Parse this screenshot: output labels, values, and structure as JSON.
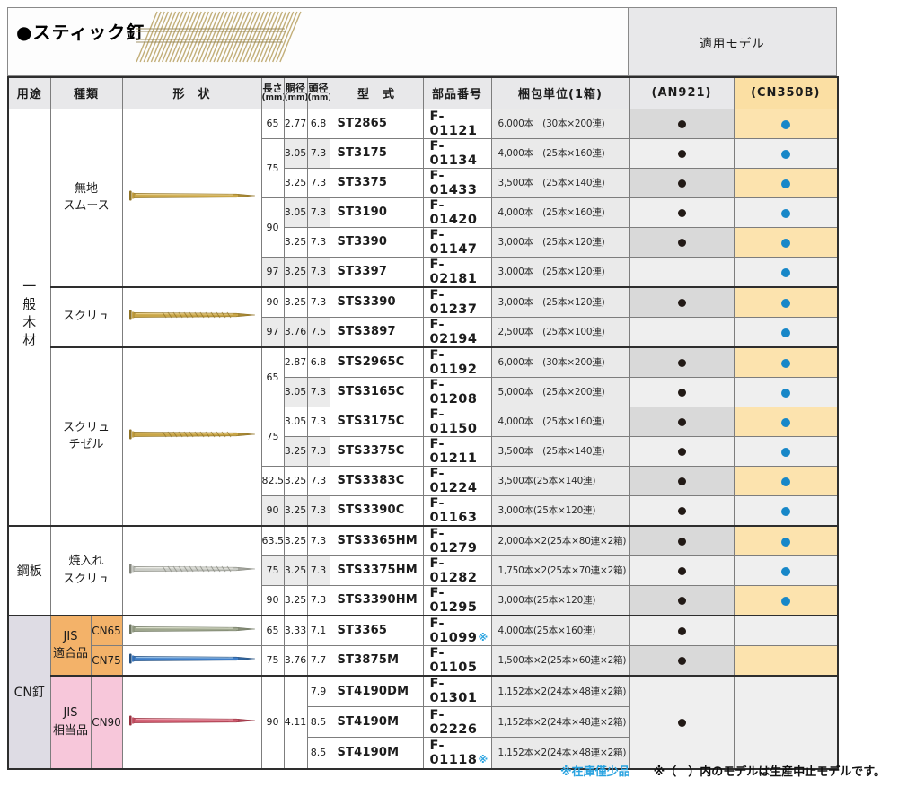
{
  "page": {
    "title": "●スティック釘",
    "applicable_models_label": "適用モデル",
    "footnote_stock": "※在庫僅少品",
    "footnote_discontinued": "※（　）内のモデルは生産中止モデルです。"
  },
  "colors": {
    "accent_blue_dot": "#1787C8",
    "black_dot": "#221A16",
    "cn350b_cream": "#FCE3AE",
    "header_grey": "#E8E8EA",
    "an921_grey": "#D9D9D9",
    "jis_orange": "#F3B269",
    "jis_pink": "#F7C7DA",
    "cn_lavender": "#DEDCE4",
    "note_blue": "#29A3E0"
  },
  "table": {
    "headers": {
      "usage": "用途",
      "type": "種類",
      "shape": "形　状",
      "length": "長さ",
      "shank_dia": "胴径",
      "head_dia": "頭径",
      "mm": "(mm)",
      "model": "型　式",
      "part_no": "部品番号",
      "packing": "梱包単位(1箱)",
      "an921": "(AN921)",
      "cn350b": "(CN350B)"
    },
    "usage_groups": [
      {
        "label": "一般木材",
        "rows": 14,
        "vertical": true,
        "bg": "white"
      },
      {
        "label": "鋼板",
        "rows": 3,
        "vertical": false,
        "bg": "white"
      },
      {
        "label": "CN釘",
        "rows": 5,
        "vertical": false,
        "bg": "lavender"
      }
    ],
    "type_groups": [
      {
        "label": "無地\nスムース",
        "rows": 6,
        "full": true,
        "shape": "gold_smooth"
      },
      {
        "label": "スクリュ",
        "rows": 2,
        "full": true,
        "shape": "gold_screw"
      },
      {
        "label": "スクリュ\nチゼル",
        "rows": 6,
        "full": true,
        "shape": "gold_screw"
      },
      {
        "label": "焼入れ\nスクリュ",
        "rows": 3,
        "full": true,
        "shape": "silver_screw"
      },
      {
        "label": "JIS\n適合品",
        "rows": 2,
        "full": false,
        "bg": "orange",
        "subs": [
          {
            "label": "CN65",
            "rows": 1,
            "shape": "cn65",
            "bg": "orange"
          },
          {
            "label": "CN75",
            "rows": 1,
            "shape": "cn75",
            "bg": "orange"
          }
        ]
      },
      {
        "label": "JIS\n相当品",
        "rows": 3,
        "full": false,
        "bg": "pink",
        "subs": [
          {
            "label": "CN90",
            "rows": 3,
            "shape": "cn90",
            "bg": "pink"
          }
        ]
      }
    ],
    "rows": [
      {
        "len": "65",
        "lenSpan": 1,
        "dia": "2.77",
        "diaSpan": 1,
        "head": "6.8",
        "model": "ST2865",
        "part": "F-01121",
        "note": false,
        "pack": "6,000本　(30本×200連)",
        "an": true,
        "cn": true,
        "shade": false
      },
      {
        "len": "75",
        "lenSpan": 2,
        "dia": "3.05",
        "diaSpan": 1,
        "head": "7.3",
        "model": "ST3175",
        "part": "F-01134",
        "note": false,
        "pack": "4,000本　(25本×160連)",
        "an": true,
        "cn": true,
        "shade": true
      },
      {
        "len": null,
        "dia": "3.25",
        "diaSpan": 1,
        "head": "7.3",
        "model": "ST3375",
        "part": "F-01433",
        "note": false,
        "pack": "3,500本　(25本×140連)",
        "an": true,
        "cn": true,
        "shade": false
      },
      {
        "len": "90",
        "lenSpan": 2,
        "dia": "3.05",
        "diaSpan": 1,
        "head": "7.3",
        "model": "ST3190",
        "part": "F-01420",
        "note": false,
        "pack": "4,000本　(25本×160連)",
        "an": true,
        "cn": true,
        "shade": true
      },
      {
        "len": null,
        "dia": "3.25",
        "diaSpan": 1,
        "head": "7.3",
        "model": "ST3390",
        "part": "F-01147",
        "note": false,
        "pack": "3,000本　(25本×120連)",
        "an": true,
        "cn": true,
        "shade": false
      },
      {
        "len": "97",
        "lenSpan": 1,
        "dia": "3.25",
        "diaSpan": 1,
        "head": "7.3",
        "model": "ST3397",
        "part": "F-02181",
        "note": false,
        "pack": "3,000本　(25本×120連)",
        "an": false,
        "cn": true,
        "shade": true
      },
      {
        "len": "90",
        "lenSpan": 1,
        "dia": "3.25",
        "diaSpan": 1,
        "head": "7.3",
        "model": "STS3390",
        "part": "F-01237",
        "note": false,
        "pack": "3,000本　(25本×120連)",
        "an": true,
        "cn": true,
        "shade": false,
        "groupTop": true
      },
      {
        "len": "97",
        "lenSpan": 1,
        "dia": "3.76",
        "diaSpan": 1,
        "head": "7.5",
        "model": "STS3897",
        "part": "F-02194",
        "note": false,
        "pack": "2,500本　(25本×100連)",
        "an": false,
        "cn": true,
        "shade": true
      },
      {
        "len": "65",
        "lenSpan": 2,
        "dia": "2.87",
        "diaSpan": 1,
        "head": "6.8",
        "model": "STS2965C",
        "part": "F-01192",
        "note": false,
        "pack": "6,000本　(30本×200連)",
        "an": true,
        "cn": true,
        "shade": false,
        "groupTop": true
      },
      {
        "len": null,
        "dia": "3.05",
        "diaSpan": 1,
        "head": "7.3",
        "model": "STS3165C",
        "part": "F-01208",
        "note": false,
        "pack": "5,000本　(25本×200連)",
        "an": true,
        "cn": true,
        "shade": true
      },
      {
        "len": "75",
        "lenSpan": 2,
        "dia": "3.05",
        "diaSpan": 1,
        "head": "7.3",
        "model": "STS3175C",
        "part": "F-01150",
        "note": false,
        "pack": "4,000本　(25本×160連)",
        "an": true,
        "cn": true,
        "shade": false
      },
      {
        "len": null,
        "dia": "3.25",
        "diaSpan": 1,
        "head": "7.3",
        "model": "STS3375C",
        "part": "F-01211",
        "note": false,
        "pack": "3,500本　(25本×140連)",
        "an": true,
        "cn": true,
        "shade": true
      },
      {
        "len": "82.5",
        "lenSpan": 1,
        "dia": "3.25",
        "diaSpan": 1,
        "head": "7.3",
        "model": "STS3383C",
        "part": "F-01224",
        "note": false,
        "pack": "3,500本(25本×140連)",
        "an": true,
        "cn": true,
        "shade": false
      },
      {
        "len": "90",
        "lenSpan": 1,
        "dia": "3.25",
        "diaSpan": 1,
        "head": "7.3",
        "model": "STS3390C",
        "part": "F-01163",
        "note": false,
        "pack": "3,000本(25本×120連)",
        "an": true,
        "cn": true,
        "shade": true
      },
      {
        "len": "63.5",
        "lenSpan": 1,
        "dia": "3.25",
        "diaSpan": 1,
        "head": "7.3",
        "model": "STS3365HM",
        "part": "F-01279",
        "note": false,
        "pack": "2,000本×2(25本×80連×2箱)",
        "an": true,
        "cn": true,
        "shade": false,
        "groupTop": true
      },
      {
        "len": "75",
        "lenSpan": 1,
        "dia": "3.25",
        "diaSpan": 1,
        "head": "7.3",
        "model": "STS3375HM",
        "part": "F-01282",
        "note": false,
        "pack": "1,750本×2(25本×70連×2箱)",
        "an": true,
        "cn": true,
        "shade": true
      },
      {
        "len": "90",
        "lenSpan": 1,
        "dia": "3.25",
        "diaSpan": 1,
        "head": "7.3",
        "model": "STS3390HM",
        "part": "F-01295",
        "note": false,
        "pack": "3,000本(25本×120連)",
        "an": true,
        "cn": true,
        "shade": false
      },
      {
        "len": "65",
        "lenSpan": 1,
        "dia": "3.33",
        "diaSpan": 1,
        "head": "7.1",
        "model": "ST3365",
        "part": "F-01099",
        "note": true,
        "pack": "4,000本(25本×160連)",
        "an": true,
        "cn": false,
        "shade": false,
        "groupTop": true
      },
      {
        "len": "75",
        "lenSpan": 1,
        "dia": "3.76",
        "diaSpan": 1,
        "head": "7.7",
        "model": "ST3875M",
        "part": "F-01105",
        "note": false,
        "pack": "1,500本×2(25本×60連×2箱)",
        "an": true,
        "cn": false,
        "shade": false
      },
      {
        "len": "90",
        "lenSpan": 3,
        "dia": "4.11",
        "diaSpan": 3,
        "head": "7.9",
        "model": "ST4190DM",
        "part": "F-01301",
        "note": false,
        "pack": "1,152本×2(24本×48連×2箱)",
        "an": true,
        "anSpan": 3,
        "cn": false,
        "cnSpan": 3,
        "shade": false,
        "groupTop": true
      },
      {
        "len": null,
        "dia": null,
        "head": "8.5",
        "model": "ST4190M",
        "part": "F-02226",
        "note": false,
        "pack": "1,152本×2(24本×48連×2箱)",
        "an": null,
        "cn": null,
        "shade": false
      },
      {
        "len": null,
        "dia": null,
        "head": "8.5",
        "model": "ST4190M",
        "part": "F-01118",
        "note": true,
        "pack": "1,152本×2(24本×48連×2箱)",
        "an": null,
        "cn": null,
        "shade": false
      }
    ]
  }
}
